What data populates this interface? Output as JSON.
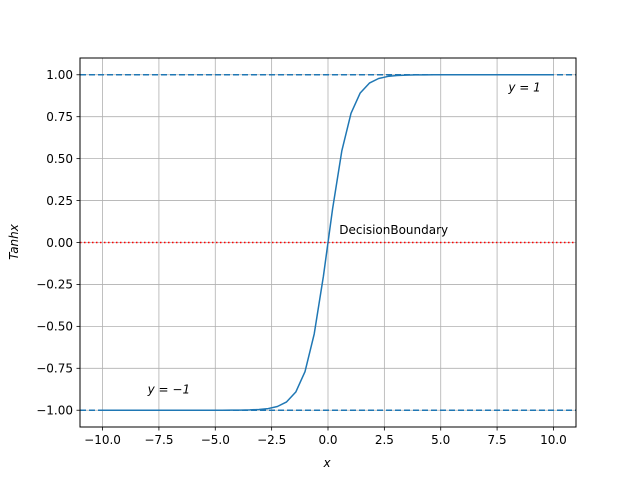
{
  "chart_data": {
    "type": "line",
    "title": "",
    "xlabel": "x",
    "ylabel": "Tanhx",
    "xlim": [
      -11,
      11
    ],
    "ylim": [
      -1.1,
      1.1
    ],
    "grid": true,
    "x_ticks": [
      -10.0,
      -7.5,
      -5.0,
      -2.5,
      0.0,
      2.5,
      5.0,
      7.5,
      10.0
    ],
    "y_ticks": [
      -1.0,
      -0.75,
      -0.5,
      -0.25,
      0.0,
      0.25,
      0.5,
      0.75,
      1.0
    ],
    "x_tick_labels": [
      "−10.0",
      "−7.5",
      "−5.0",
      "−2.5",
      "0.0",
      "2.5",
      "5.0",
      "7.5",
      "10.0"
    ],
    "y_tick_labels": [
      "−1.00",
      "−0.75",
      "−0.50",
      "−0.25",
      "0.00",
      "0.25",
      "0.50",
      "0.75",
      "1.00"
    ],
    "series": [
      {
        "function": "tanh",
        "x_range": [
          -10,
          10
        ],
        "samples": 50,
        "color": "#1f77b4",
        "style": "solid"
      }
    ],
    "reference_lines": [
      {
        "y": 1,
        "color": "#1f77b4",
        "style": "dashed"
      },
      {
        "y": -1,
        "color": "#1f77b4",
        "style": "dashed"
      },
      {
        "y": 0,
        "color": "#ff0000",
        "style": "dotted"
      }
    ],
    "annotations": [
      {
        "text": "y = 1",
        "x": 8,
        "y": 0.9
      },
      {
        "text": "y = −1",
        "x": -8,
        "y": -0.9
      },
      {
        "text": "DecisionBoundary",
        "x": 0.5,
        "y": 0.05
      }
    ]
  },
  "colors": {
    "series": "#1f77b4",
    "boundary": "#ff0000",
    "grid": "#b0b0b0"
  }
}
